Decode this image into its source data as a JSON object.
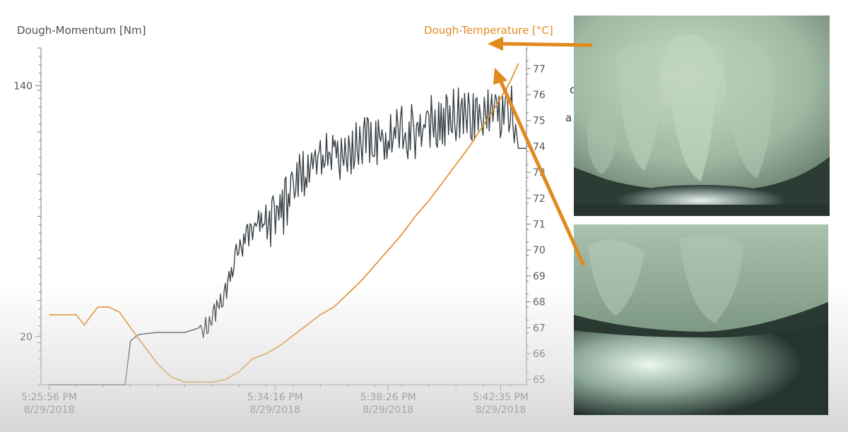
{
  "chart_data": {
    "type": "line",
    "title": "",
    "left_axis": {
      "label": "Dough-Momentum [Nm]",
      "ticks": [
        140,
        20
      ],
      "range": [
        -3,
        158
      ],
      "color": "#3b4247"
    },
    "right_axis": {
      "label": "Dough-Temperature [°C]",
      "ticks": [
        65,
        66,
        67,
        68,
        69,
        70,
        71,
        72,
        73,
        74,
        75,
        76,
        77
      ],
      "range": [
        64.8,
        77.8
      ],
      "color": "#e08a1e"
    },
    "x_axis": {
      "type": "time",
      "ticks": [
        {
          "time": "5:25:56 PM",
          "date": "8/29/2018"
        },
        {
          "time": "5:34:16 PM",
          "date": "8/29/2018"
        },
        {
          "time": "5:38:26 PM",
          "date": "8/29/2018"
        },
        {
          "time": "5:42:35 PM",
          "date": "8/29/2018"
        }
      ],
      "range_minutes": [
        -0.3,
        17.6
      ]
    },
    "series": [
      {
        "axis": "left",
        "color": "#3b4247",
        "x": [
          0,
          2.8,
          3.0,
          3.3,
          4.0,
          5.0,
          5.5,
          6.0,
          6.5,
          6.9,
          7.5,
          7.95,
          8.3,
          8.6,
          9.0,
          9.5,
          10.0,
          10.5,
          11.0,
          11.5,
          12.0,
          12.5,
          13.0,
          13.5,
          14.0,
          14.5,
          15.0,
          15.5,
          16.0,
          16.5,
          16.9,
          17.1,
          17.3,
          17.6
        ],
        "values": [
          -3,
          -3,
          18,
          21,
          22,
          22,
          24,
          32,
          45,
          62,
          75,
          80,
          82,
          88,
          100,
          110,
          112,
          113,
          116,
          118,
          120,
          122,
          124,
          126,
          128,
          130,
          132,
          133,
          134,
          135,
          134,
          133,
          110,
          110
        ]
      },
      {
        "axis": "right",
        "color": "#e08a1e",
        "x": [
          0,
          1.0,
          1.3,
          1.5,
          1.8,
          2.2,
          2.6,
          3.0,
          3.5,
          4.0,
          4.5,
          5.0,
          5.5,
          6.0,
          6.5,
          7.0,
          7.5,
          8.0,
          8.5,
          9.0,
          9.5,
          10.0,
          10.5,
          11.0,
          11.5,
          12.0,
          12.5,
          13.0,
          13.5,
          14.0,
          14.5,
          15.0,
          15.5,
          16.0,
          16.5,
          17.0,
          17.3
        ],
        "values": [
          67.5,
          67.5,
          67.1,
          67.4,
          67.8,
          67.8,
          67.6,
          67.0,
          66.3,
          65.6,
          65.1,
          64.9,
          64.9,
          64.9,
          65.0,
          65.3,
          65.8,
          66.0,
          66.3,
          66.7,
          67.1,
          67.5,
          67.8,
          68.3,
          68.8,
          69.4,
          70.0,
          70.6,
          71.3,
          71.9,
          72.6,
          73.3,
          74.0,
          74.8,
          75.6,
          76.5,
          77.2
        ]
      }
    ],
    "grid": false,
    "legend": "none"
  },
  "side_text": {
    "top_letter": "c",
    "bottom_letter": "a"
  }
}
